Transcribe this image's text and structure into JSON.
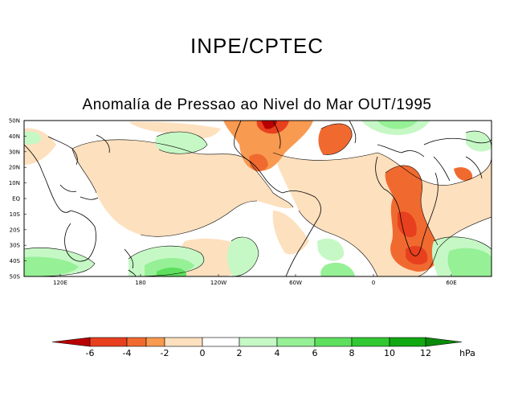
{
  "header": {
    "title": "INPE/CPTEC",
    "subtitle": "Anomalía de Pressao ao Nivel do Mar OUT/1995"
  },
  "map": {
    "lat_labels": [
      "50N",
      "40N",
      "30N",
      "20N",
      "10N",
      "EQ",
      "10S",
      "20S",
      "30S",
      "40S",
      "50S"
    ],
    "lon_labels": [
      "120E",
      "180",
      "120W",
      "60W",
      "0",
      "60E"
    ]
  },
  "colorbar": {
    "unit": "hPa",
    "tick_labels": [
      "-6",
      "-4",
      "-2",
      "0",
      "2",
      "4",
      "6",
      "8",
      "10",
      "12"
    ],
    "colors": {
      "lt_-6": "#b80000",
      "-6_-4": "#e8401e",
      "-4_-3": "#f06a30",
      "-3_-2": "#f89a50",
      "-2_0": "#fde0be",
      "0_2": "#ffffff",
      "2_4": "#c6f8c6",
      "4_6": "#96f096",
      "6_8": "#5ee05e",
      "8_10": "#32c832",
      "10_12": "#12a812",
      "gt_12": "#0a8a0a"
    }
  }
}
